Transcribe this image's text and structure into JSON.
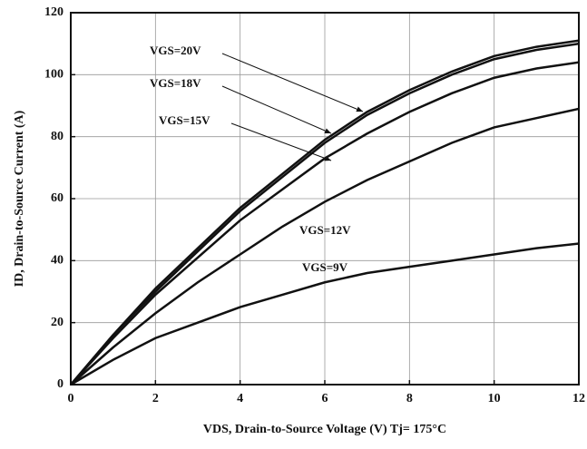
{
  "chart_data": {
    "type": "line",
    "xlabel": "VDS, Drain-to-Source Voltage (V) Tj= 175°C",
    "ylabel": "ID, Drain-to-Source Current (A)",
    "x": [
      0,
      1,
      2,
      3,
      4,
      5,
      6,
      7,
      8,
      9,
      10,
      11,
      12
    ],
    "series": [
      {
        "name": "VGS=20V",
        "color": "#111111",
        "values": [
          0,
          16,
          31,
          44,
          57,
          68,
          79,
          88,
          95,
          101,
          106,
          109,
          111
        ]
      },
      {
        "name": "VGS=18V",
        "color": "#111111",
        "values": [
          0,
          16,
          30,
          43,
          56,
          67,
          78,
          87,
          94,
          100,
          105,
          108,
          110
        ]
      },
      {
        "name": "VGS=15V",
        "color": "#111111",
        "values": [
          0,
          15,
          29,
          41,
          53,
          63,
          73,
          81,
          88,
          94,
          99,
          102,
          104
        ]
      },
      {
        "name": "VGS=12V",
        "color": "#111111",
        "values": [
          0,
          12,
          23,
          33,
          42,
          51,
          59,
          66,
          72,
          78,
          83,
          86,
          89
        ]
      },
      {
        "name": "VGS=9V",
        "color": "#111111",
        "values": [
          0,
          8,
          15,
          20,
          25,
          29,
          33,
          36,
          38,
          40,
          42,
          44,
          45.5
        ]
      }
    ],
    "xlim": [
      0,
      12
    ],
    "xticks": [
      0,
      2,
      4,
      6,
      8,
      10,
      12
    ],
    "ylim": [
      0,
      120
    ],
    "yticks": [
      0,
      20,
      40,
      60,
      80,
      100,
      120
    ],
    "grid": true
  }
}
